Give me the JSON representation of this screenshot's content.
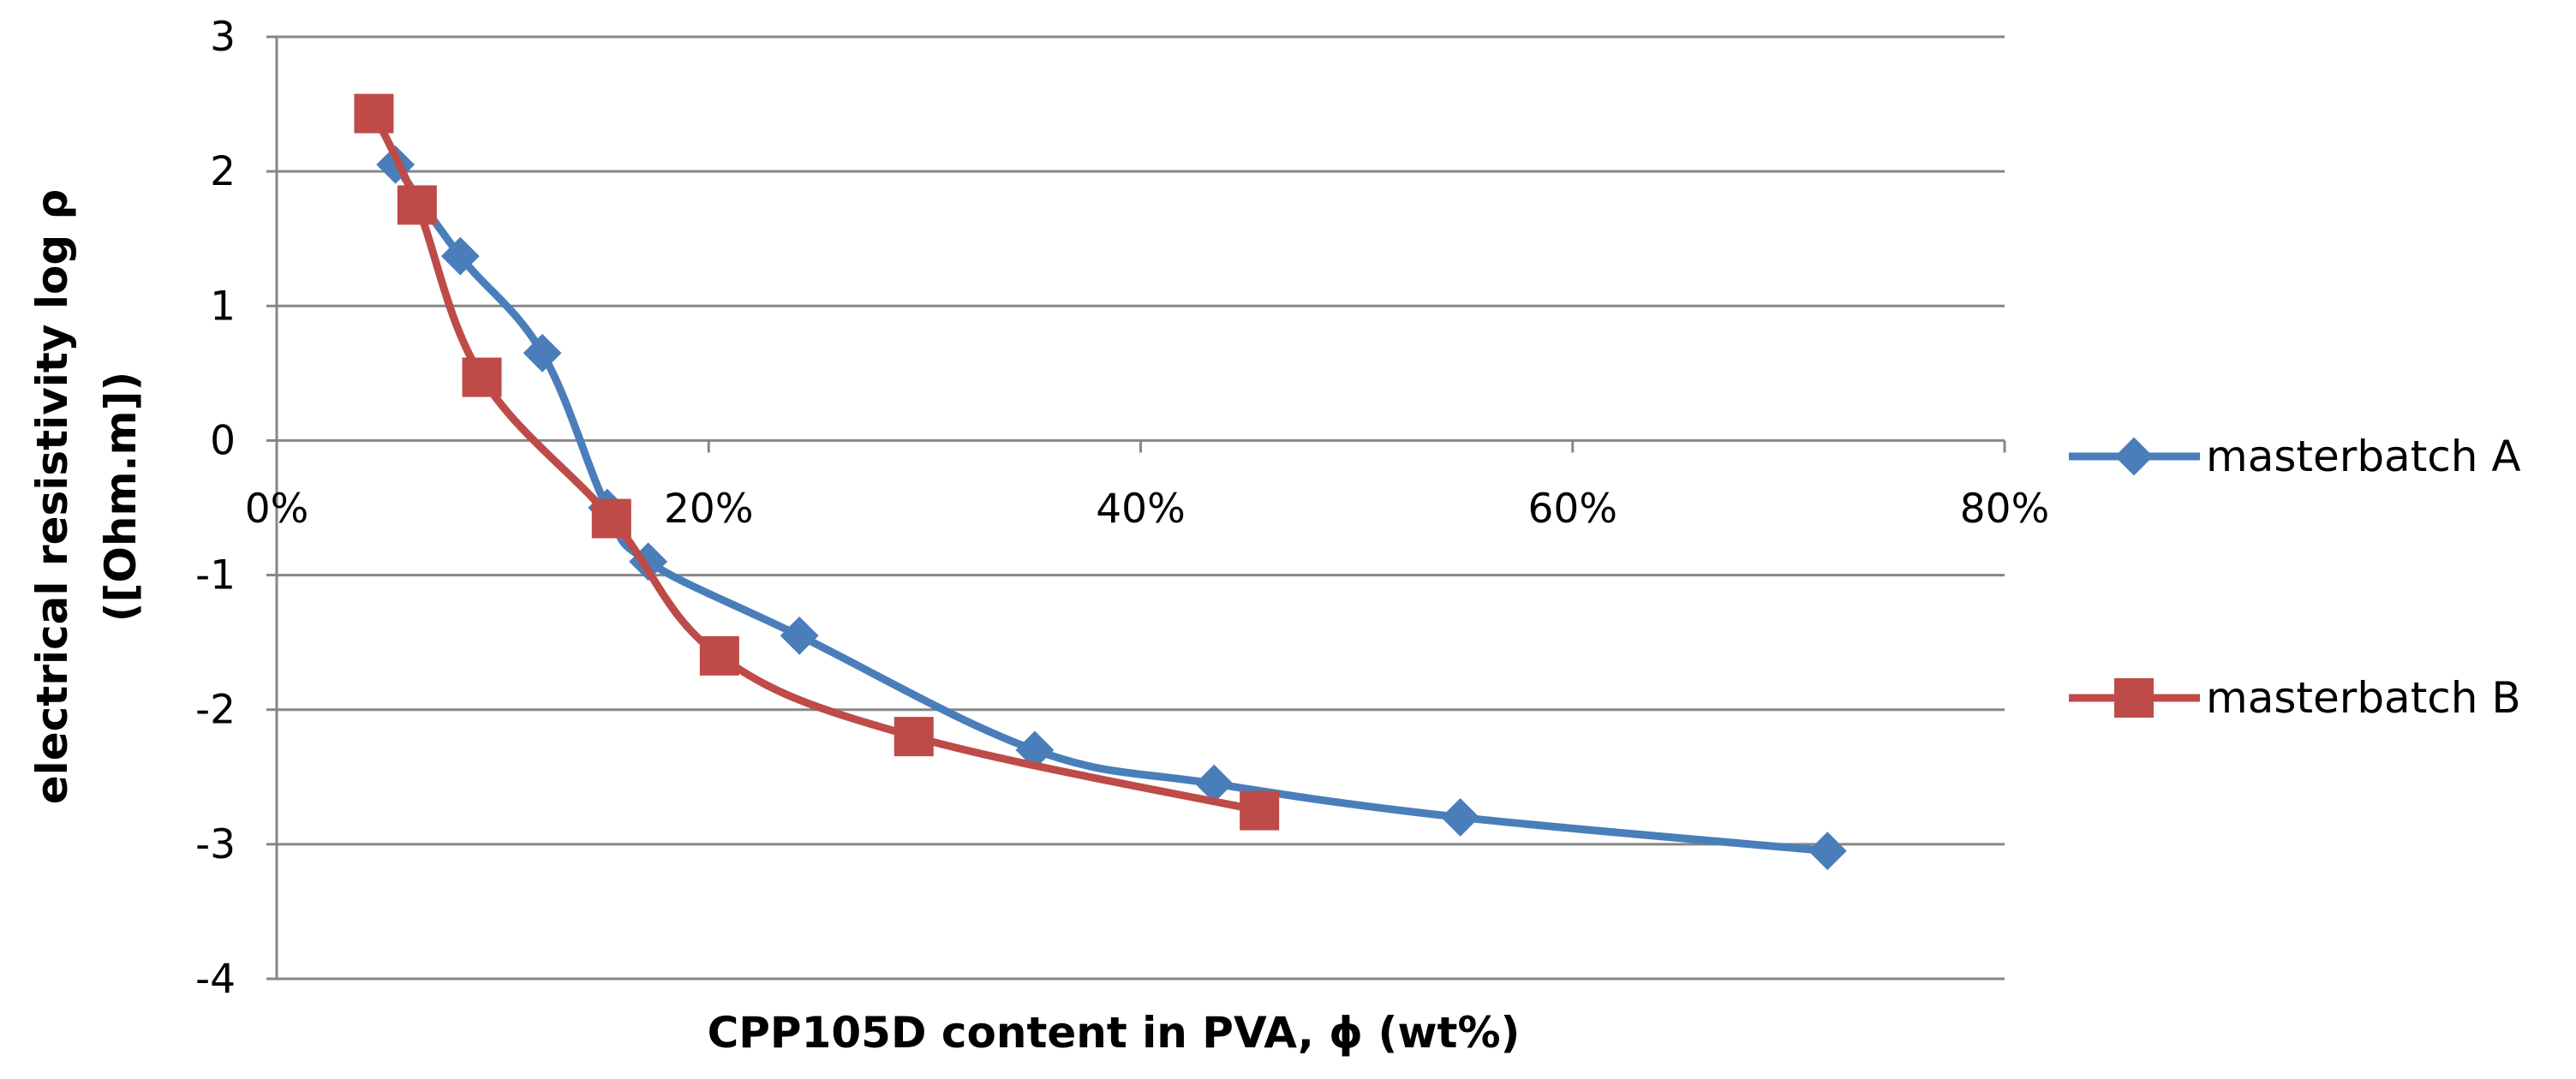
{
  "chart_data": {
    "type": "line",
    "title": "",
    "xlabel": "CPP105D content in PVA, ϕ (wt%)",
    "ylabel_line1": "electrical resistivity log ρ",
    "ylabel_line2": "([Ohm.m])",
    "xlim": [
      0,
      80
    ],
    "ylim": [
      -4,
      3
    ],
    "x_ticks": [
      0,
      20,
      40,
      60,
      80
    ],
    "x_tick_labels": [
      "0%",
      "20%",
      "40%",
      "60%",
      "80%"
    ],
    "y_ticks": [
      3,
      2,
      1,
      0,
      -1,
      -2,
      -3,
      -4
    ],
    "y_tick_labels": [
      "3",
      "2",
      "1",
      "0",
      "-1",
      "-2",
      "-3",
      "-4"
    ],
    "grid": "horizontal",
    "legend_position": "right",
    "series": [
      {
        "name": "masterbatch A",
        "color": "#4a7ebb",
        "marker": "diamond",
        "x": [
          5.5,
          8.5,
          12.3,
          15.3,
          17.2,
          24.2,
          35.1,
          43.4,
          54.8,
          71.8
        ],
        "y": [
          2.05,
          1.37,
          0.65,
          -0.5,
          -0.9,
          -1.45,
          -2.3,
          -2.55,
          -2.8,
          -3.05
        ]
      },
      {
        "name": "masterbatch B",
        "color": "#be4b48",
        "marker": "square",
        "x": [
          4.5,
          6.5,
          9.5,
          15.5,
          20.5,
          29.5,
          45.5
        ],
        "y": [
          2.43,
          1.75,
          0.47,
          -0.58,
          -1.6,
          -2.2,
          -2.75
        ]
      }
    ]
  }
}
